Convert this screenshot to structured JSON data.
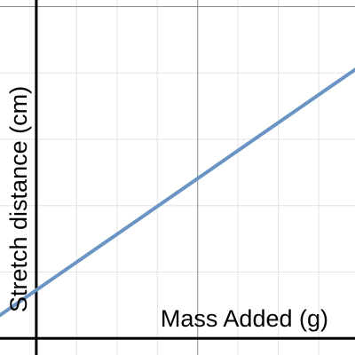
{
  "chart_data": {
    "type": "line",
    "title": "",
    "xlabel": "Mass Added (g)",
    "ylabel": "Stretch distance (cm)",
    "xlim": [
      -0.9,
      7.9
    ],
    "ylim": [
      -0.05,
      1.02
    ],
    "grid": true,
    "series": [
      {
        "color": "#6a94c4",
        "x": [
          -0.9,
          7.9
        ],
        "y": [
          0.07,
          0.81
        ]
      }
    ]
  }
}
